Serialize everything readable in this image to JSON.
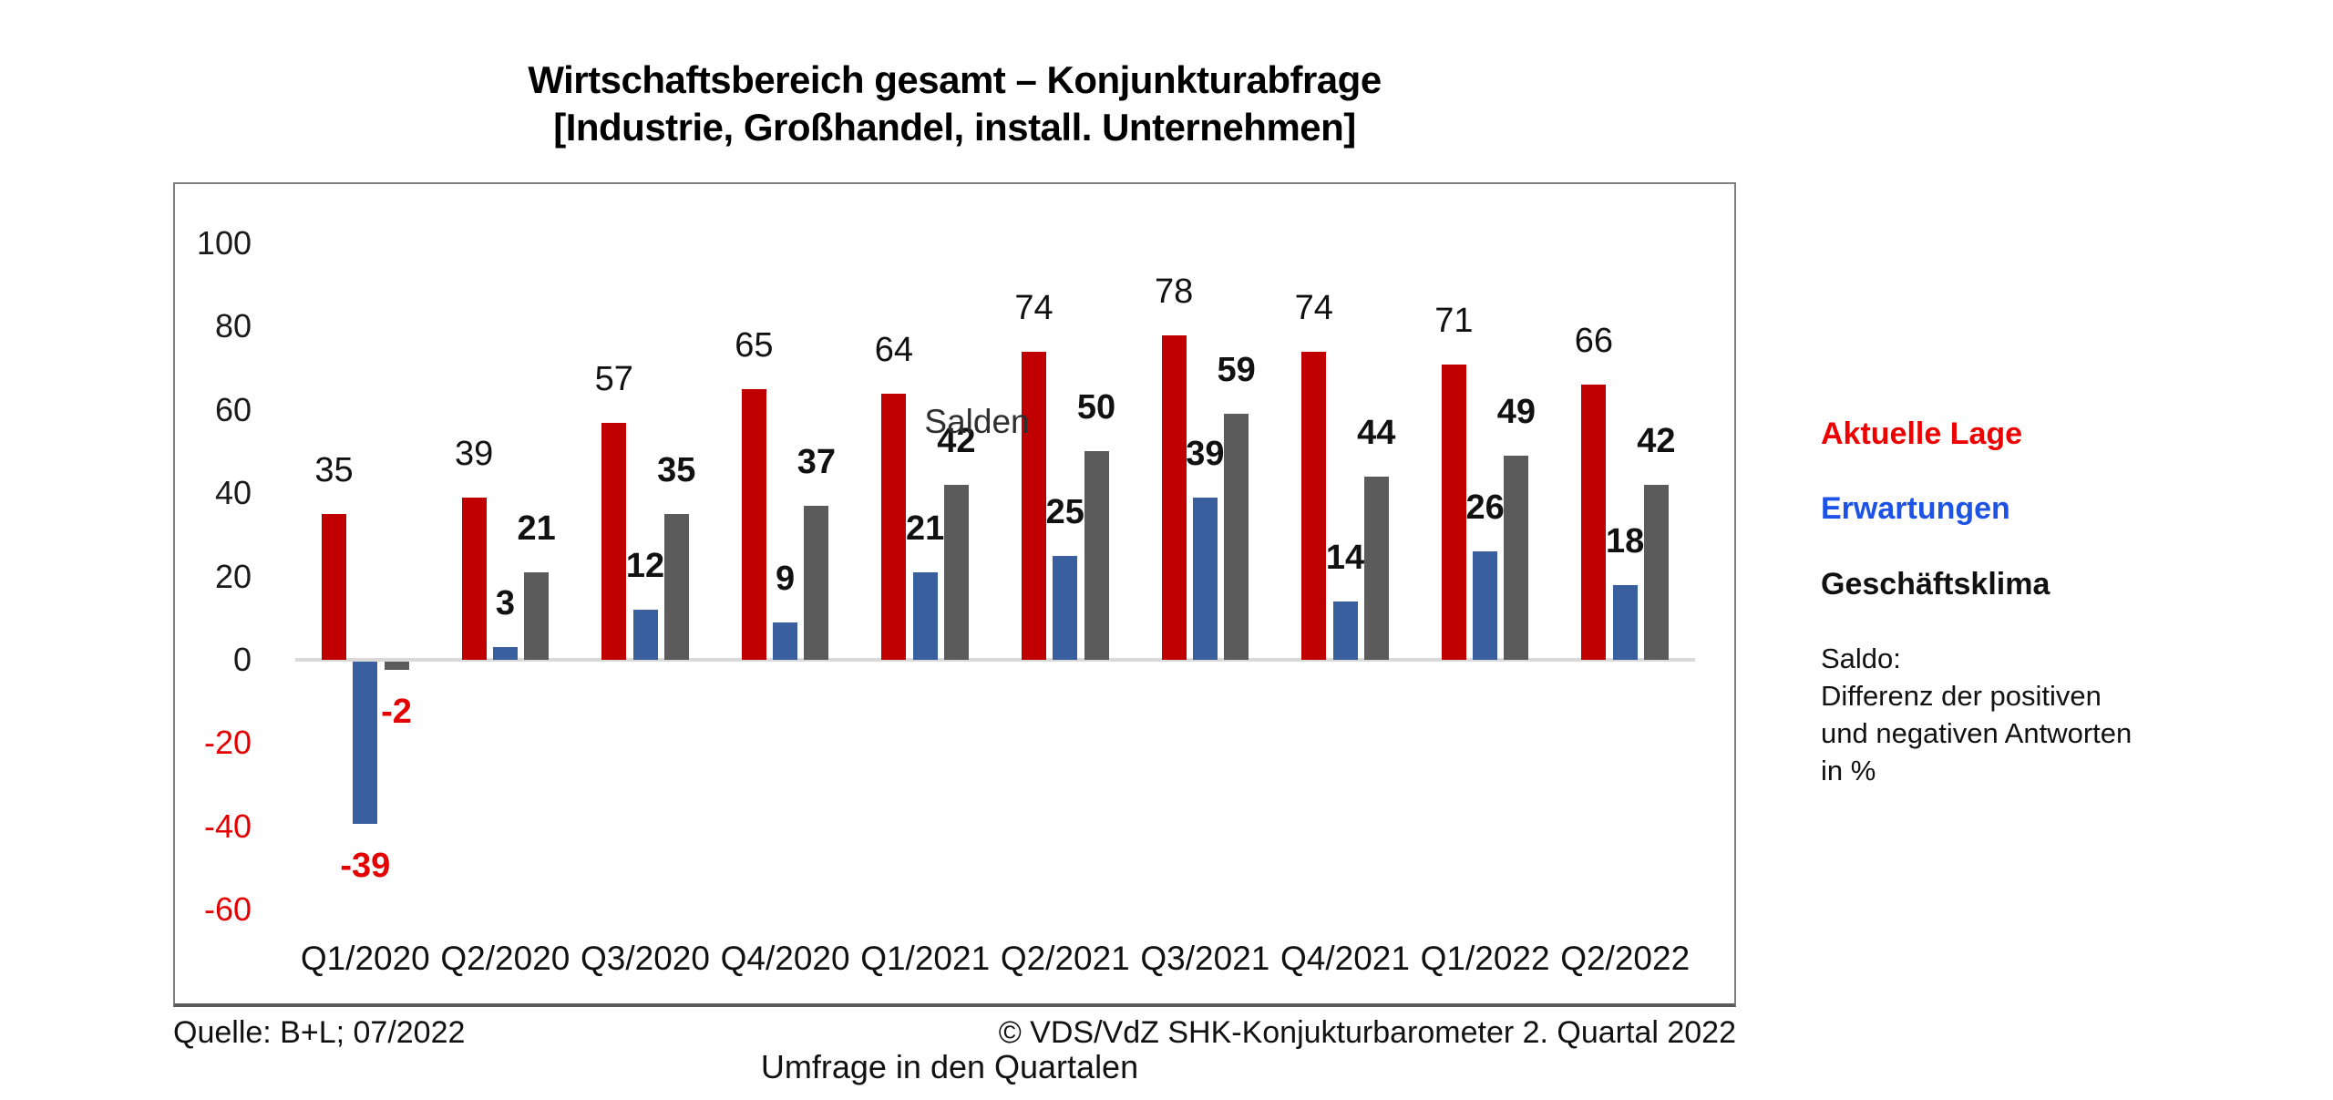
{
  "title": {
    "line1": "Wirtschaftsbereich gesamt – Konjunkturabfrage",
    "line2": "[Industrie, Großhandel, install. Unternehmen]"
  },
  "chart_data": {
    "type": "bar",
    "inner_title": "Salden",
    "xlabel": "Umfrage in den Quartalen",
    "categories": [
      "Q1/2020",
      "Q2/2020",
      "Q3/2020",
      "Q4/2020",
      "Q1/2021",
      "Q2/2021",
      "Q3/2021",
      "Q4/2021",
      "Q1/2022",
      "Q2/2022"
    ],
    "series": [
      {
        "name": "Aktuelle Lage",
        "color": "#C00000",
        "label_weight": "normal",
        "values": [
          35,
          39,
          57,
          65,
          64,
          74,
          78,
          74,
          71,
          66
        ]
      },
      {
        "name": "Erwartungen",
        "color": "#3A5F9E",
        "label_weight": "bold",
        "values": [
          -39,
          3,
          12,
          9,
          21,
          25,
          39,
          14,
          26,
          18
        ]
      },
      {
        "name": "Geschäftsklima",
        "color": "#5B5B5B",
        "label_weight": "bold",
        "values": [
          -2,
          21,
          35,
          37,
          42,
          50,
          59,
          44,
          49,
          42
        ]
      }
    ],
    "yticks": [
      100,
      80,
      60,
      40,
      20,
      0,
      -20,
      -40,
      -60
    ],
    "ylim": [
      -60,
      100
    ],
    "grid": false,
    "legend_position": "right",
    "negative_label_color": "#E40000",
    "positive_label_color": "#111111",
    "axis_line_color": "#D9D9D9"
  },
  "legend": {
    "items": [
      {
        "label": "Aktuelle Lage",
        "color": "#EE0000"
      },
      {
        "label": "Erwartungen",
        "color": "#1C53E6"
      },
      {
        "label": "Geschäftsklima",
        "color": "#111111"
      }
    ],
    "note_lines": [
      "Saldo:",
      "Differenz der positiven",
      "und negativen Antworten",
      "in %"
    ]
  },
  "footer": {
    "left": "Quelle: B+L; 07/2022",
    "right": "© VDS/VdZ SHK-Konjukturbarometer 2. Quartal 2022"
  }
}
